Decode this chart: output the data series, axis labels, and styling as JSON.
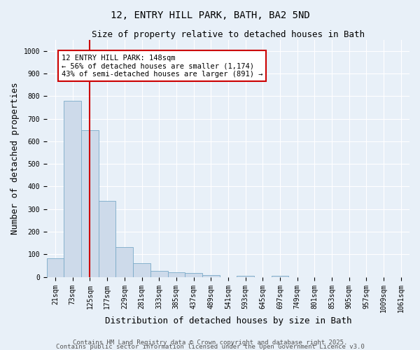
{
  "title_line1": "12, ENTRY HILL PARK, BATH, BA2 5ND",
  "title_line2": "Size of property relative to detached houses in Bath",
  "bar_labels": [
    "21sqm",
    "73sqm",
    "125sqm",
    "177sqm",
    "229sqm",
    "281sqm",
    "333sqm",
    "385sqm",
    "437sqm",
    "489sqm",
    "541sqm",
    "593sqm",
    "645sqm",
    "697sqm",
    "749sqm",
    "801sqm",
    "853sqm",
    "905sqm",
    "957sqm",
    "1009sqm",
    "1061sqm"
  ],
  "bar_values": [
    83,
    780,
    648,
    335,
    133,
    62,
    27,
    20,
    17,
    8,
    0,
    5,
    0,
    5,
    0,
    0,
    0,
    0,
    0,
    0,
    0
  ],
  "bar_color": "#cddaea",
  "bar_edge_color": "#7aaac8",
  "bar_width": 1.0,
  "vline_x": 2,
  "vline_color": "#cc0000",
  "annotation_text": "12 ENTRY HILL PARK: 148sqm\n← 56% of detached houses are smaller (1,174)\n43% of semi-detached houses are larger (891) →",
  "annotation_box_color": "#ffffff",
  "annotation_box_edge": "#cc0000",
  "ylabel": "Number of detached properties",
  "xlabel": "Distribution of detached houses by size in Bath",
  "ylim": [
    0,
    1050
  ],
  "yticks": [
    0,
    100,
    200,
    300,
    400,
    500,
    600,
    700,
    800,
    900,
    1000
  ],
  "footnote1": "Contains HM Land Registry data © Crown copyright and database right 2025.",
  "footnote2": "Contains public sector information licensed under the Open Government Licence v3.0",
  "bg_color": "#e8f0f8",
  "grid_color": "#ffffff",
  "title_fontsize": 10,
  "subtitle_fontsize": 9,
  "tick_fontsize": 7,
  "label_fontsize": 9,
  "annotation_fontsize": 7.5,
  "footnote_fontsize": 6.5
}
